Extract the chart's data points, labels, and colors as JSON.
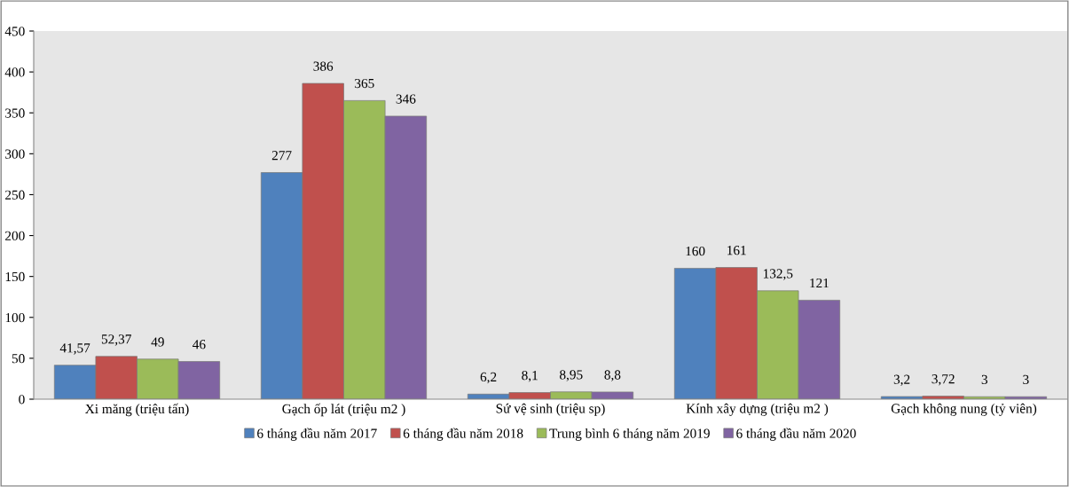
{
  "chart_data": {
    "type": "bar",
    "categories": [
      "Xi măng (triệu tấn)",
      "Gạch ốp lát (triệu m2 )",
      "Sứ vệ sinh (triệu sp)",
      "Kính xây dựng (triệu m2 )",
      "Gạch không nung (tỷ viên)"
    ],
    "series": [
      {
        "name": "6 tháng đầu năm 2017",
        "color": "#4f81bd",
        "values": [
          41.57,
          277,
          6.2,
          160,
          3.2
        ],
        "value_labels": [
          "41,57",
          "277",
          "6,2",
          "160",
          "3,2"
        ]
      },
      {
        "name": "6 tháng đầu năm 2018",
        "color": "#c0504d",
        "values": [
          52.37,
          386,
          8.1,
          161,
          3.72
        ],
        "value_labels": [
          "52,37",
          "386",
          "8,1",
          "161",
          "3,72"
        ]
      },
      {
        "name": "Trung bình 6 tháng năm 2019",
        "color": "#9bbb59",
        "values": [
          49,
          365,
          8.95,
          132.5,
          3
        ],
        "value_labels": [
          "49",
          "365",
          "8,95",
          "132,5",
          "3"
        ]
      },
      {
        "name": "6 tháng đầu năm 2020",
        "color": "#8064a2",
        "values": [
          46,
          346,
          8.8,
          121,
          3
        ],
        "value_labels": [
          "46",
          "346",
          "8,8",
          "121",
          "3"
        ]
      }
    ],
    "ylim": [
      0,
      450
    ],
    "yticks": [
      0,
      50,
      100,
      150,
      200,
      250,
      300,
      350,
      400,
      450
    ],
    "grid": false,
    "legend": "bottom"
  }
}
